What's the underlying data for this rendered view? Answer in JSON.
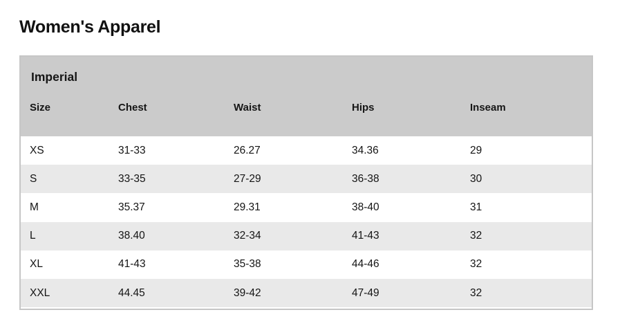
{
  "page_title": "Women's Apparel",
  "size_chart": {
    "section_title": "Imperial",
    "columns": [
      "Size",
      "Chest",
      "Waist",
      "Hips",
      "Inseam"
    ],
    "rows": [
      [
        "XS",
        "31-33",
        "26.27",
        "34.36",
        "29"
      ],
      [
        "S",
        "33-35",
        "27-29",
        "36-38",
        "30"
      ],
      [
        "M",
        "35.37",
        "29.31",
        "38-40",
        "31"
      ],
      [
        "L",
        "38.40",
        "32-34",
        "41-43",
        "32"
      ],
      [
        "XL",
        "41-43",
        "35-38",
        "44-46",
        "32"
      ],
      [
        "XXL",
        "44.45",
        "39-42",
        "47-49",
        "32"
      ]
    ],
    "colors": {
      "header_bg": "#cbcbcb",
      "row_bg": "#ffffff",
      "row_alt_bg": "#e9e9e9",
      "border": "#c6c6c6",
      "text": "#141414"
    }
  }
}
